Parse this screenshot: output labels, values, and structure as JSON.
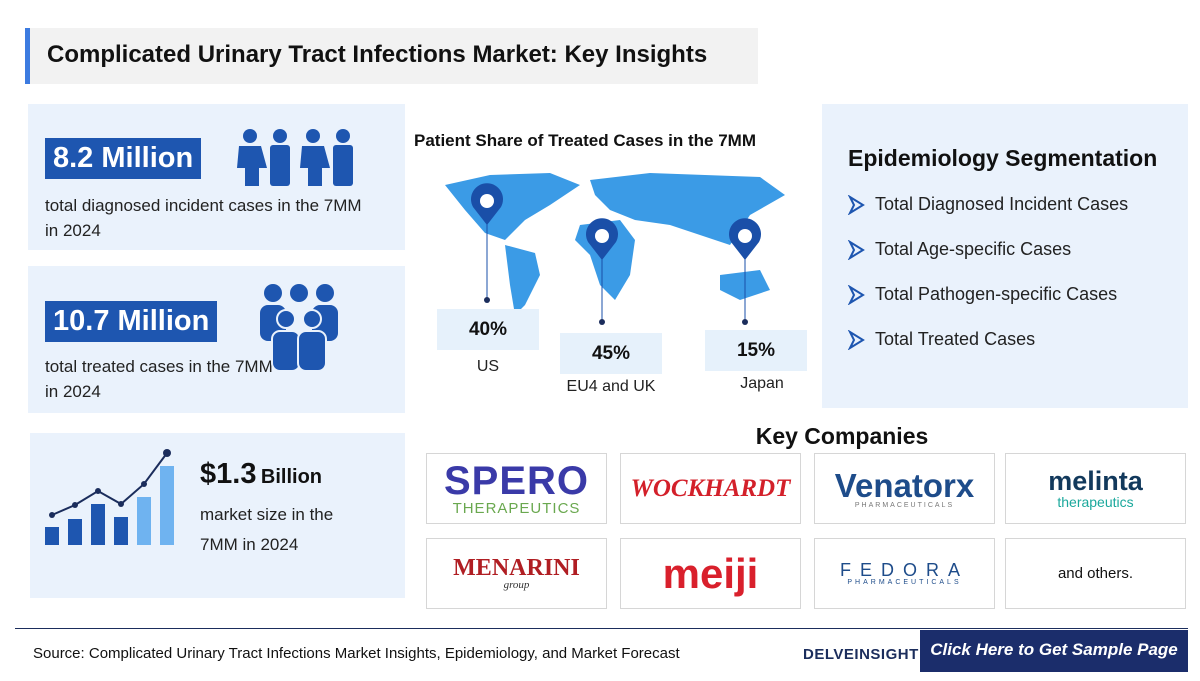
{
  "header": {
    "title": "Complicated Urinary Tract Infections Market: Key Insights"
  },
  "stats": [
    {
      "value": "8.2 Million",
      "label": "total diagnosed incident cases in the 7MM in 2024"
    },
    {
      "value": "10.7 Million",
      "label": "total treated cases in the 7MM in 2024"
    },
    {
      "value": "$1.3",
      "unit": "Billion",
      "label": "market size in the 7MM in 2024"
    }
  ],
  "map": {
    "title": "Patient Share of Treated Cases in the 7MM",
    "regions": [
      {
        "share": "40%",
        "name": "US"
      },
      {
        "share": "45%",
        "name": "EU4 and UK"
      },
      {
        "share": "15%",
        "name": "Japan"
      }
    ]
  },
  "segmentation": {
    "title": "Epidemiology Segmentation",
    "items": [
      "Total Diagnosed Incident Cases",
      "Total Age-specific Cases",
      "Total Pathogen-specific Cases",
      "Total Treated Cases"
    ]
  },
  "companies": {
    "title": "Key Companies",
    "logos": [
      {
        "name": "SPERO",
        "sub": "THERAPEUTICS"
      },
      {
        "name": "WOCKHARDT"
      },
      {
        "name": "Venatorx",
        "sub": "PHARMACEUTICALS"
      },
      {
        "name": "melinta",
        "sub": "therapeutics"
      },
      {
        "name": "MENARINI",
        "sub": "group"
      },
      {
        "name": "meiji"
      },
      {
        "name": "FEDORA",
        "sub": "PHARMACEUTICALS"
      },
      {
        "name": "and others."
      }
    ]
  },
  "footer": {
    "source": "Source: Complicated Urinary Tract Infections Market Insights, Epidemiology, and Market Forecast",
    "brand": "DELVEINSIGHT",
    "cta": "Click Here to Get Sample Page"
  }
}
